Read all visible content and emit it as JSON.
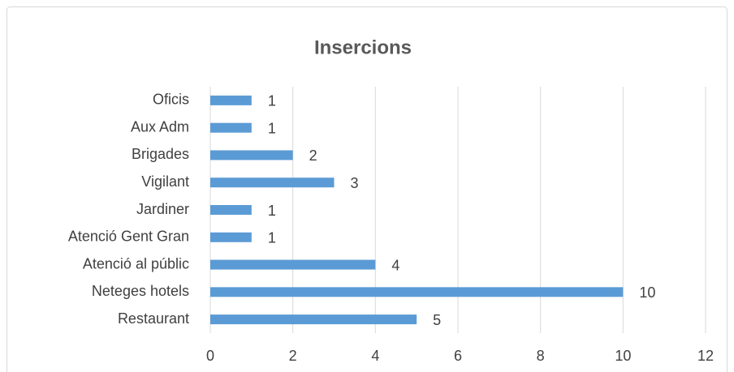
{
  "chart_data": {
    "type": "bar",
    "orientation": "horizontal",
    "title": "Insercions",
    "categories": [
      "Oficis",
      "Aux Adm",
      "Brigades",
      "Vigilant",
      "Jardiner",
      "Atenció Gent Gran",
      "Atenció al públic",
      "Neteges hotels",
      "Restaurant"
    ],
    "values": [
      1,
      1,
      2,
      3,
      1,
      1,
      4,
      10,
      5
    ],
    "color": "#5b9bd5",
    "xlim": [
      0,
      12
    ],
    "xticks": [
      0,
      2,
      4,
      6,
      8,
      10,
      12
    ],
    "grid": true
  }
}
